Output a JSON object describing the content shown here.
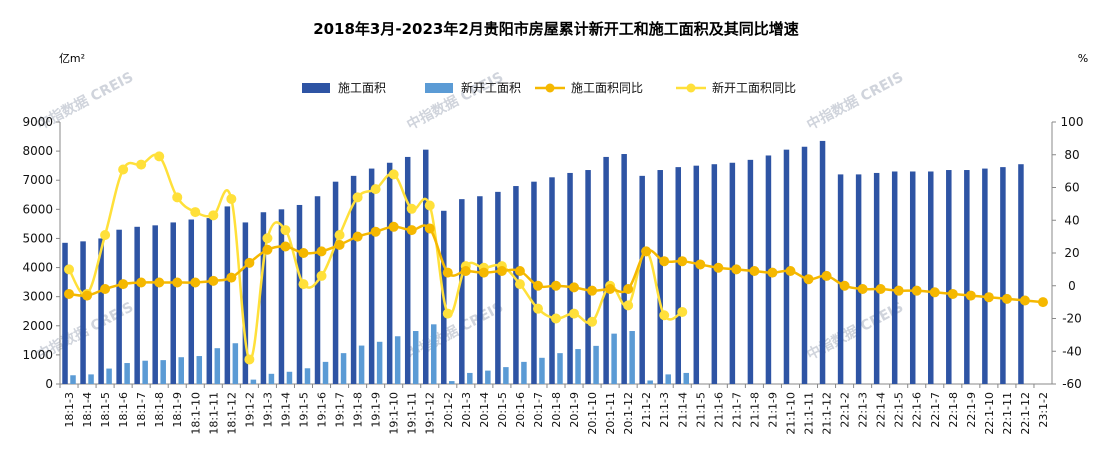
{
  "chart_data": {
    "type": "bar",
    "title": "2018年3月-2023年2月贵阳市房屋累计新开工和施工面积及其同比增速",
    "left_unit": "亿m²",
    "right_unit": "%",
    "watermark": "中指数据 CREIS",
    "y_left": {
      "min": 0,
      "max": 9000,
      "step": 1000
    },
    "y_right": {
      "min": -60,
      "max": 100,
      "step": 20
    },
    "grid": false,
    "legend_position": "top",
    "categories": [
      "18:1-3",
      "18:1-4",
      "18:1-5",
      "18:1-6",
      "18:1-7",
      "18:1-8",
      "18:1-9",
      "18:1-10",
      "18:1-11",
      "18:1-12",
      "19:1-2",
      "19:1-3",
      "19:1-4",
      "19:1-5",
      "19:1-6",
      "19:1-7",
      "19:1-8",
      "19:1-9",
      "19:1-10",
      "19:1-11",
      "19:1-12",
      "20:1-2",
      "20:1-3",
      "20:1-4",
      "20:1-5",
      "20:1-6",
      "20:1-7",
      "20:1-8",
      "20:1-9",
      "20:1-10",
      "20:1-11",
      "20:1-12",
      "21:1-2",
      "21:1-3",
      "21:1-4",
      "21:1-5",
      "21:1-6",
      "21:1-7",
      "21:1-8",
      "21:1-9",
      "21:1-10",
      "21:1-11",
      "21:1-12",
      "22:1-2",
      "22:1-3",
      "22:1-4",
      "22:1-5",
      "22:1-6",
      "22:1-7",
      "22:1-8",
      "22:1-9",
      "22:1-10",
      "22:1-11",
      "22:1-12",
      "23:1-2"
    ],
    "series": [
      {
        "name": "施工面积",
        "type": "bar",
        "axis": "left",
        "color": "#2e54a4",
        "values": [
          4850,
          4900,
          5000,
          5300,
          5400,
          5450,
          5550,
          5650,
          5700,
          6100,
          5550,
          5900,
          6000,
          6150,
          6450,
          6950,
          7150,
          7400,
          7600,
          7800,
          8050,
          5950,
          6350,
          6450,
          6600,
          6800,
          6950,
          7100,
          7250,
          7350,
          7800,
          7900,
          7150,
          7350,
          7450,
          7500,
          7550,
          7600,
          7700,
          7850,
          8050,
          8150,
          8350,
          7200,
          7200,
          7250,
          7300,
          7300,
          7300,
          7350,
          7350,
          7400,
          7450,
          7550,
          null
        ]
      },
      {
        "name": "新开工面积",
        "type": "bar",
        "axis": "left",
        "color": "#5b9bd5",
        "values": [
          300,
          330,
          530,
          720,
          800,
          820,
          920,
          960,
          1230,
          1400,
          150,
          350,
          420,
          540,
          760,
          1060,
          1320,
          1450,
          1640,
          1820,
          2050,
          100,
          380,
          460,
          580,
          760,
          900,
          1060,
          1200,
          1310,
          1730,
          1820,
          120,
          330,
          380,
          null,
          null,
          null,
          null,
          null,
          null,
          null,
          null,
          null,
          null,
          null,
          null,
          null,
          null,
          null,
          null,
          null,
          null,
          null,
          null
        ]
      },
      {
        "name": "施工面积同比",
        "type": "line",
        "axis": "right",
        "color": "#f5b800",
        "values": [
          -5,
          -6,
          -2,
          1,
          2,
          2,
          2,
          2,
          3,
          5,
          14,
          22,
          24,
          20,
          21,
          25,
          30,
          33,
          36,
          34,
          35,
          8,
          9,
          8,
          9,
          9,
          0,
          0,
          -1,
          -3,
          -2,
          -2,
          21,
          15,
          15,
          13,
          11,
          10,
          9,
          8,
          9,
          4,
          6,
          0,
          -2,
          -2,
          -3,
          -3,
          -4,
          -5,
          -6,
          -7,
          -8,
          -9,
          -10
        ]
      },
      {
        "name": "新开工面积同比",
        "type": "line",
        "axis": "right",
        "color": "#ffe03a",
        "values": [
          10,
          -5,
          31,
          71,
          74,
          79,
          54,
          45,
          43,
          53,
          -45,
          29,
          34,
          1,
          6,
          31,
          54,
          59,
          68,
          47,
          49,
          -17,
          12,
          11,
          12,
          1,
          -14,
          -20,
          -17,
          -22,
          0,
          -12,
          21,
          -18,
          -16,
          null,
          null,
          null,
          null,
          null,
          null,
          null,
          null,
          null,
          null,
          null,
          null,
          null,
          null,
          null,
          null,
          null,
          null,
          null,
          null
        ]
      }
    ]
  }
}
